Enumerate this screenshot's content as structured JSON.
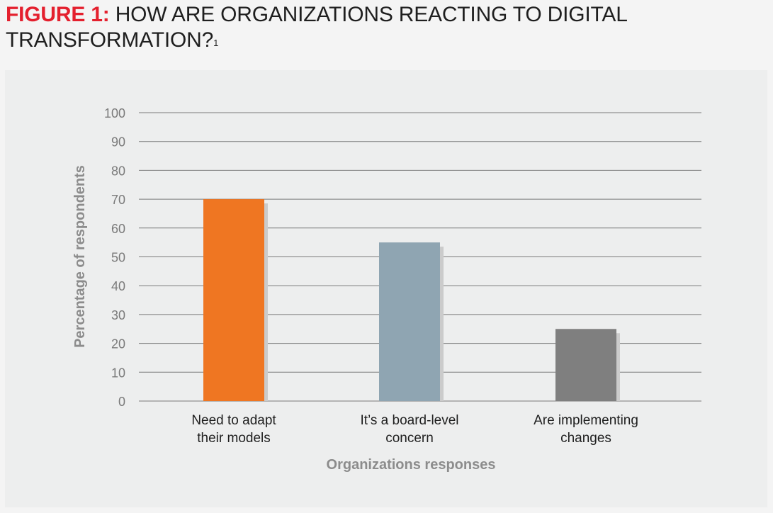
{
  "figure": {
    "label": "FIGURE 1:",
    "title": "HOW ARE ORGANIZATIONS REACTING TO DIGITAL TRANSFORMATION?",
    "footnote_marker": "1"
  },
  "colors": {
    "title_label": "#e4202e",
    "bar_orange": "#ef7622",
    "bar_blue_gray": "#8fa5b2",
    "bar_gray": "#7f7f7f",
    "bar_shadow": "#cbcbcb",
    "gridline": "#7a7a7a",
    "panel": "#edeeee"
  },
  "chart_data": {
    "type": "bar",
    "categories": [
      [
        "Need to adapt",
        "their models"
      ],
      [
        "It’s a board-level",
        "concern"
      ],
      [
        "Are implementing",
        "changes"
      ]
    ],
    "values": [
      70,
      55,
      25
    ],
    "bar_colors": [
      "#ef7622",
      "#8fa5b2",
      "#7f7f7f"
    ],
    "xlabel": "Organizations responses",
    "ylabel": "Percentage of respondents",
    "ylim": [
      0,
      100
    ],
    "yticks": [
      0,
      10,
      20,
      30,
      40,
      50,
      60,
      70,
      80,
      90,
      100
    ],
    "grid": true,
    "legend": "none"
  }
}
